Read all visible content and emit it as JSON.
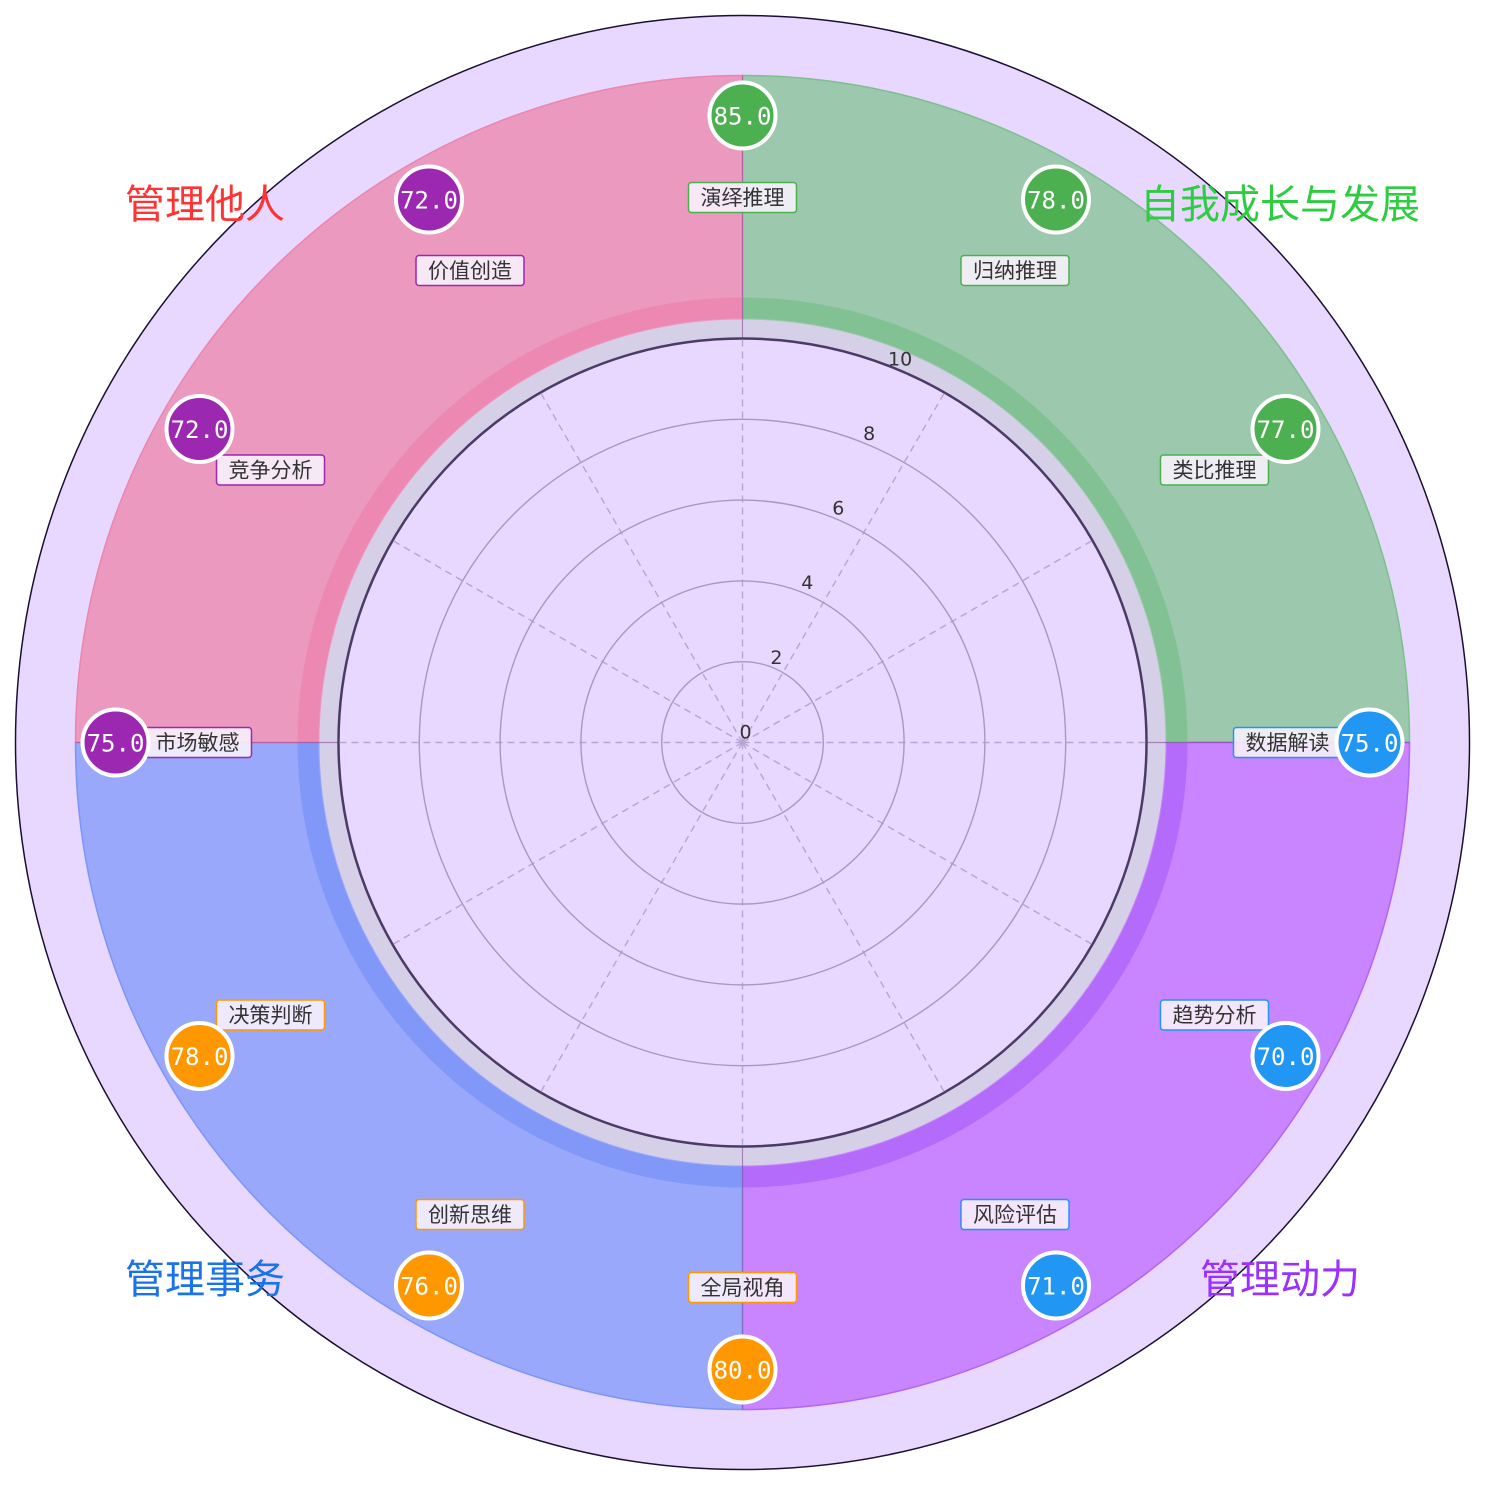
{
  "chart_data": {
    "type": "radar",
    "radial_ticks": [
      0,
      2,
      4,
      6,
      8,
      10
    ],
    "rlim": [
      0,
      10
    ],
    "grid": true,
    "quadrants": [
      {
        "title": "自我成长与发展",
        "color": "#4CAF50",
        "title_color": "#2ECC40",
        "fill": "#9CC8AE",
        "band": "#7DC08F",
        "position": "top-right"
      },
      {
        "title": "管理动力",
        "color": "#2196F3",
        "title_color": "#9B30FF",
        "fill": "#C985FF",
        "band": "#B066FA",
        "position": "bottom-right"
      },
      {
        "title": "管理事务",
        "color": "#FF9800",
        "title_color": "#1A73E8",
        "fill": "#9AA8FC",
        "band": "#7C95F8",
        "position": "bottom-left"
      },
      {
        "title": "管理他人",
        "color": "#9C27B0",
        "title_color": "#FF3333",
        "fill": "#EC99C0",
        "band": "#EC85AE",
        "position": "top-left"
      }
    ],
    "skills": [
      {
        "label": "演绎推理",
        "score": "85.0",
        "quadrant": 0
      },
      {
        "label": "归纳推理",
        "score": "78.0",
        "quadrant": 0
      },
      {
        "label": "类比推理",
        "score": "77.0",
        "quadrant": 0
      },
      {
        "label": "数据解读",
        "score": "75.0",
        "quadrant": 1
      },
      {
        "label": "趋势分析",
        "score": "70.0",
        "quadrant": 1
      },
      {
        "label": "风险评估",
        "score": "71.0",
        "quadrant": 1
      },
      {
        "label": "全局视角",
        "score": "80.0",
        "quadrant": 2
      },
      {
        "label": "创新思维",
        "score": "76.0",
        "quadrant": 2
      },
      {
        "label": "决策判断",
        "score": "78.0",
        "quadrant": 2
      },
      {
        "label": "市场敏感",
        "score": "75.0",
        "quadrant": 3
      },
      {
        "label": "竞争分析",
        "score": "72.0",
        "quadrant": 3
      },
      {
        "label": "价值创造",
        "score": "72.0",
        "quadrant": 3
      }
    ]
  }
}
